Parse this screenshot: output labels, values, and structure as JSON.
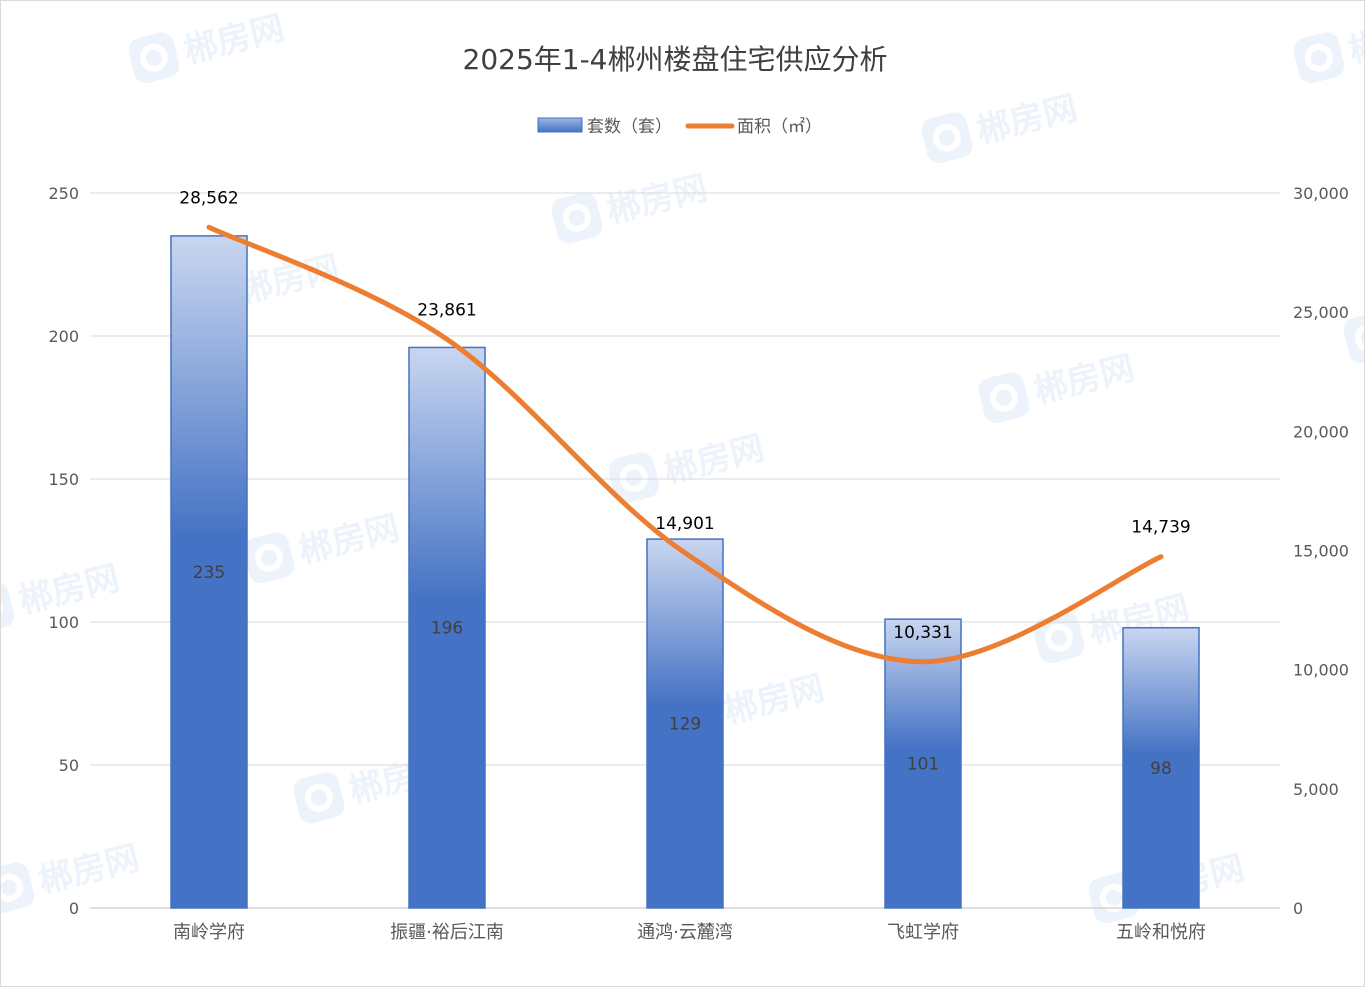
{
  "chart_data": {
    "type": "bar",
    "title": "2025年1-4郴州楼盘住宅供应分析",
    "categories": [
      "南岭学府",
      "振疆·裕后江南",
      "通鸿·云麓湾",
      "飞虹学府",
      "五岭和悦府"
    ],
    "series": [
      {
        "name": "套数（套）",
        "type": "bar",
        "axis": "left",
        "values": [
          235,
          196,
          129,
          101,
          98
        ],
        "color": "#4472c4"
      },
      {
        "name": "面积（㎡）",
        "type": "line",
        "axis": "right",
        "smooth": true,
        "values": [
          28562,
          23861,
          14901,
          10331,
          14739
        ],
        "color": "#ed7d31"
      }
    ],
    "bar_labels": [
      "235",
      "196",
      "129",
      "101",
      "98"
    ],
    "line_labels": [
      "28,562",
      "23,861",
      "14,901",
      "10,331",
      "14,739"
    ],
    "y_left": {
      "min": 0,
      "max": 250,
      "ticks": [
        "0",
        "50",
        "100",
        "150",
        "200",
        "250"
      ]
    },
    "y_right": {
      "min": 0,
      "max": 30000,
      "ticks": [
        "0",
        "5,000",
        "10,000",
        "15,000",
        "20,000",
        "25,000",
        "30,000"
      ]
    },
    "legend_position": "top-center",
    "grid": true,
    "watermark_text": "郴房网"
  }
}
